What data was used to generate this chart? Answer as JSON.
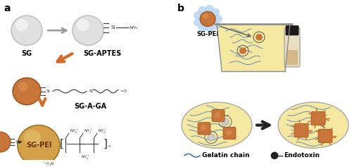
{
  "panel_a_label": "a",
  "panel_b_label": "b",
  "label_sg": "SG",
  "label_sg_aptes": "SG-APTES",
  "label_sg_a_ga": "SG-A-GA",
  "label_sg_pei": "SG-PEI",
  "label_gelatin_chain": "Gelatin chain",
  "label_endotoxin": "Endotoxin",
  "bg_color": "#ffffff",
  "sphere_white_face": "#e0e0e0",
  "sphere_white_edge": "#bbbbbb",
  "sphere_brown_face": "#c8753a",
  "sphere_brown_edge": "#9a4a18",
  "sphere_pei_face": "#d4a04a",
  "sphere_pei_edge": "#a07020",
  "arrow_orange": "#d4692a",
  "arrow_gray": "#999999",
  "arrow_black": "#222222",
  "ellipse_yellow": "#f5e8a0",
  "ellipse_edge": "#aaaaaa",
  "text_color": "#000000",
  "blue_chain": "#4477bb",
  "formula_color": "#333333",
  "beaker_edge": "#888888",
  "vial_face": "#e8dfc0",
  "vial_cap": "#1a1a1a",
  "blue_aura": "#aaccee"
}
